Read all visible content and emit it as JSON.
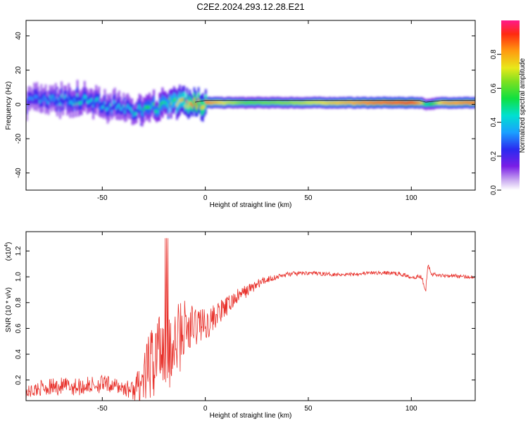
{
  "chart_data": [
    {
      "type": "heatmap",
      "title": "C2E2.2024.293.12.28.E21",
      "xlabel": "Height of straight line (km)",
      "ylabel": "Frequency (Hz)",
      "xlim": [
        -87,
        131
      ],
      "ylim": [
        -50,
        49
      ],
      "xticks": [
        -50,
        0,
        50,
        100
      ],
      "yticks": [
        -40,
        -20,
        0,
        20,
        40
      ],
      "colorbar": {
        "label": "Normalized spectral amplitude",
        "range": [
          0,
          1
        ],
        "ticks": [
          "0.0",
          "0.2",
          "0.4",
          "0.6",
          "0.8"
        ]
      },
      "ridge_x": [
        -85,
        -75,
        -65,
        -55,
        -45,
        -38,
        -30,
        -24,
        -18,
        -12,
        -5,
        0,
        10,
        20,
        40,
        60,
        80,
        100,
        104,
        107,
        115,
        131
      ],
      "ridge_freq": [
        2,
        2,
        3,
        1,
        -1,
        -3,
        -4,
        -2,
        1,
        1,
        0,
        1,
        1,
        1,
        1,
        1,
        1,
        1,
        1,
        0,
        1,
        1
      ],
      "ridge_amplitude": [
        0.35,
        0.4,
        0.45,
        0.45,
        0.4,
        0.4,
        0.5,
        0.55,
        0.6,
        0.75,
        0.95,
        0.85,
        0.7,
        0.6,
        0.65,
        0.75,
        0.85,
        0.9,
        0.8,
        0.45,
        0.8,
        0.85
      ]
    },
    {
      "type": "line",
      "xlabel": "Height of straight line (km)",
      "ylabel": "SNR (10 * v/v)",
      "y_multiplier": "(x10",
      "y_multiplier_exp": "4",
      "y_multiplier_close": ")",
      "xlim": [
        -87,
        131
      ],
      "ylim": [
        0.04,
        1.35
      ],
      "xticks": [
        -50,
        0,
        50,
        100
      ],
      "yticks": [
        "0.2",
        "0.4",
        "0.6",
        "0.8",
        "1.0",
        "1.2"
      ],
      "series_color": "#e8302a",
      "x": [
        -87,
        -80,
        -70,
        -60,
        -50,
        -45,
        -40,
        -35,
        -30,
        -27,
        -24,
        -21,
        -18,
        -16,
        -14,
        -12,
        -10,
        -8,
        -5,
        -2,
        0,
        5,
        10,
        15,
        20,
        25,
        30,
        35,
        40,
        50,
        60,
        70,
        80,
        90,
        95,
        100,
        105,
        107,
        108,
        110,
        115,
        120,
        125,
        131
      ],
      "y": [
        0.1,
        0.14,
        0.15,
        0.15,
        0.17,
        0.16,
        0.14,
        0.12,
        0.2,
        0.3,
        0.4,
        0.5,
        0.55,
        0.35,
        0.5,
        0.55,
        0.6,
        0.58,
        0.62,
        0.65,
        0.62,
        0.7,
        0.76,
        0.84,
        0.89,
        0.94,
        0.98,
        1.0,
        1.02,
        1.03,
        1.02,
        1.02,
        1.03,
        1.03,
        1.02,
        1.0,
        1.0,
        0.9,
        1.1,
        1.02,
        1.01,
        1.01,
        1.0,
        1.0
      ],
      "noise_amplitude": [
        0.05,
        0.06,
        0.07,
        0.07,
        0.07,
        0.06,
        0.06,
        0.08,
        0.18,
        0.28,
        0.35,
        0.4,
        0.45,
        0.35,
        0.3,
        0.28,
        0.25,
        0.22,
        0.18,
        0.15,
        0.12,
        0.1,
        0.08,
        0.06,
        0.05,
        0.04,
        0.03,
        0.02,
        0.02,
        0.015,
        0.015,
        0.015,
        0.015,
        0.015,
        0.015,
        0.015,
        0.02,
        0.02,
        0.02,
        0.015,
        0.015,
        0.015,
        0.015,
        0.015
      ]
    }
  ]
}
